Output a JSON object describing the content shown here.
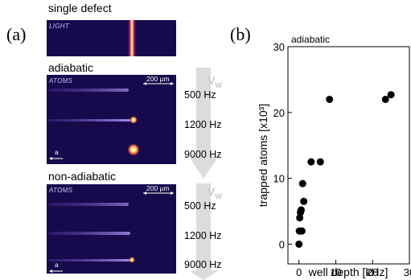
{
  "panel_a": {
    "label": "(a)",
    "single_defect": {
      "title": "single defect",
      "tag": "LIGHT"
    },
    "adiabatic": {
      "title": "adiabatic",
      "tag": "ATOMS",
      "scalebar": "200 µm",
      "axis_label": "a",
      "freqs": [
        "500 Hz",
        "1200 Hz",
        "9000 Hz"
      ],
      "velocity_label": "V",
      "velocity_sub": "W"
    },
    "non_adiabatic": {
      "title": "non-adiabatic",
      "tag": "ATOMS",
      "scalebar": "200 µm",
      "axis_label": "a",
      "freqs": [
        "500 Hz",
        "1200 Hz",
        "9000 Hz"
      ],
      "velocity_label": "V",
      "velocity_sub": "W"
    },
    "colors": {
      "image_bg": "#170a4c",
      "streak": "#a78cff",
      "hot": "#fff3b0",
      "arrow": "#dcdcdc"
    }
  },
  "panel_b": {
    "label": "(b)",
    "chart_data": {
      "type": "scatter",
      "title": "adiabatic",
      "xlabel": "well depth [kHz]",
      "ylabel": "trapped atoms [x10³]",
      "xlim": [
        -3,
        30
      ],
      "ylim": [
        -3,
        30
      ],
      "xticks": [
        "0",
        "10",
        "20",
        "30"
      ],
      "yticks": [
        "0",
        "10",
        "20",
        "30"
      ],
      "xtick_values": [
        0,
        10,
        20,
        30
      ],
      "ytick_values": [
        0,
        10,
        20,
        30
      ],
      "series": [
        {
          "x": [
            0.0,
            0.1,
            0.3,
            0.2,
            0.4,
            0.5,
            0.6,
            0.8,
            1.0,
            1.3,
            3.3,
            5.8,
            8.3,
            23.5,
            25.0
          ],
          "y": [
            0.0,
            2.0,
            2.0,
            4.0,
            4.8,
            5.0,
            5.2,
            2.0,
            9.2,
            6.5,
            12.5,
            12.5,
            22.0,
            22.0,
            22.7
          ]
        }
      ],
      "grid": false,
      "marker_color": "#000000"
    }
  }
}
